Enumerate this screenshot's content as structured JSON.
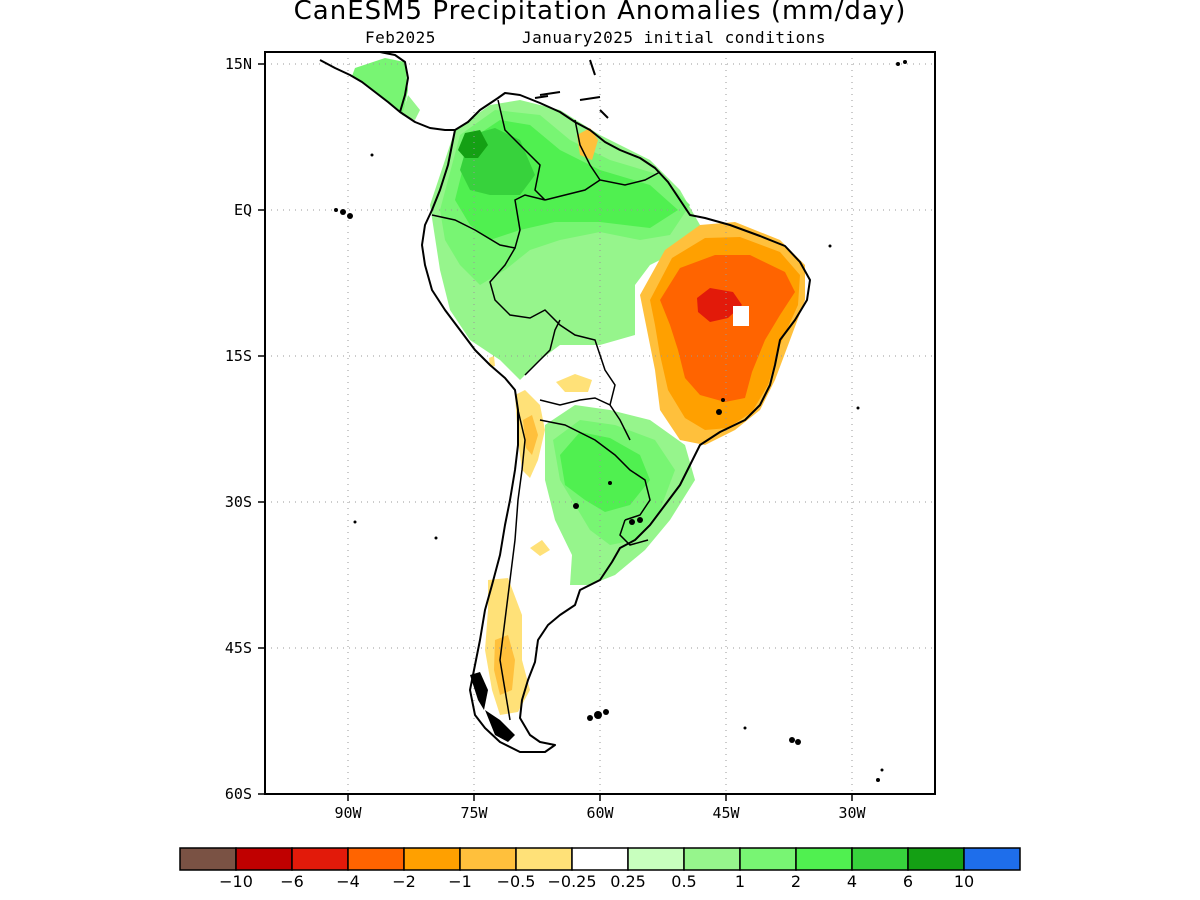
{
  "title": "CanESM5 Precipitation Anomalies (mm/day)",
  "subtitle_left": "Feb2025",
  "subtitle_right": "January2025 initial conditions",
  "map": {
    "lat_labels": [
      "15N",
      "EQ",
      "15S",
      "30S",
      "45S",
      "60S"
    ],
    "lon_labels": [
      "90W",
      "75W",
      "60W",
      "45W",
      "30W"
    ],
    "lat_values": [
      15,
      0,
      -15,
      -30,
      -45,
      -60
    ],
    "lon_values": [
      -90,
      -75,
      -60,
      -45,
      -30
    ],
    "lon_range": [
      -100,
      -20
    ],
    "lat_range": [
      -60,
      15
    ],
    "grid": "dotted",
    "coastline_color": "#000000"
  },
  "legend": {
    "colors": [
      "#7a5244",
      "#c00000",
      "#e21a0a",
      "#ff6400",
      "#ffa000",
      "#ffc03c",
      "#ffe178",
      "#ffffff",
      "#c8ffbe",
      "#96f58c",
      "#78f573",
      "#50f050",
      "#37d23c",
      "#14a014",
      "#1e6eeb"
    ],
    "labels": [
      "−10",
      "−6",
      "−4",
      "−2",
      "−1",
      "−0.5",
      "−0.25",
      "0.25",
      "0.5",
      "1",
      "2",
      "4",
      "6",
      "10"
    ]
  }
}
